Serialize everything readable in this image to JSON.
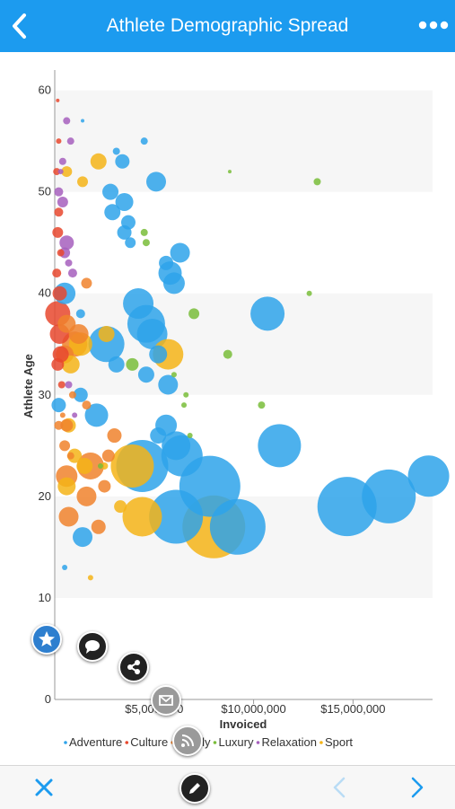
{
  "header": {
    "title": "Athlete Demographic Spread",
    "back_icon": "chevron-left-icon",
    "more_icon": "more-dots-icon"
  },
  "colors": {
    "header_bg": "#1c9bef",
    "Adventure": "#2ea3ea",
    "Culture": "#e8482e",
    "Family": "#f0832d",
    "Luxury": "#79bd3a",
    "Relaxation": "#a65fbd",
    "Sport": "#f5b417"
  },
  "chart_data": {
    "type": "scatter",
    "xlabel": "Invoiced",
    "ylabel": "Athlete Age",
    "xlim": [
      0,
      19000000
    ],
    "ylim": [
      0,
      62
    ],
    "x_ticks": [
      5000000,
      10000000,
      15000000
    ],
    "x_tick_labels": [
      "$5,000,000",
      "$10,000,000",
      "$15,000,000"
    ],
    "y_ticks": [
      0,
      10,
      20,
      30,
      40,
      50,
      60
    ],
    "y_tick_labels": [
      "0",
      "10",
      "20",
      "30",
      "40",
      "50",
      "60"
    ],
    "legend": [
      "Adventure",
      "Culture",
      "Family",
      "Luxury",
      "Relaxation",
      "Sport"
    ],
    "legend_position": "bottom",
    "series": [
      {
        "name": "Adventure",
        "points": [
          [
            500000,
            40,
            12
          ],
          [
            1300000,
            38,
            5
          ],
          [
            3100000,
            54,
            4
          ],
          [
            3400000,
            53,
            8
          ],
          [
            4500000,
            55,
            4
          ],
          [
            5100000,
            51,
            11
          ],
          [
            2800000,
            50,
            9
          ],
          [
            2900000,
            48,
            9
          ],
          [
            3500000,
            49,
            10
          ],
          [
            3700000,
            47,
            8
          ],
          [
            3500000,
            46,
            8
          ],
          [
            3800000,
            45,
            6
          ],
          [
            5600000,
            43,
            8
          ],
          [
            6300000,
            44,
            11
          ],
          [
            5800000,
            42,
            13
          ],
          [
            6000000,
            41,
            12
          ],
          [
            4200000,
            39,
            17
          ],
          [
            4600000,
            37,
            21
          ],
          [
            4900000,
            36,
            17
          ],
          [
            5200000,
            34,
            10
          ],
          [
            4600000,
            32,
            9
          ],
          [
            5700000,
            31,
            11
          ],
          [
            2600000,
            35,
            20
          ],
          [
            3100000,
            33,
            9
          ],
          [
            10700000,
            38,
            19
          ],
          [
            1300000,
            30,
            8
          ],
          [
            2100000,
            28,
            13
          ],
          [
            5600000,
            27,
            12
          ],
          [
            6100000,
            25,
            16
          ],
          [
            5200000,
            26,
            9
          ],
          [
            6400000,
            24,
            23
          ],
          [
            4400000,
            23,
            29
          ],
          [
            7800000,
            21,
            34
          ],
          [
            6100000,
            18,
            30
          ],
          [
            9200000,
            17,
            31
          ],
          [
            11300000,
            25,
            24
          ],
          [
            14700000,
            19,
            33
          ],
          [
            16800000,
            20,
            30
          ],
          [
            18800000,
            22,
            23
          ],
          [
            1400000,
            16,
            11
          ],
          [
            200000,
            29,
            8
          ],
          [
            1400000,
            57,
            2
          ],
          [
            500000,
            13,
            3
          ]
        ]
      },
      {
        "name": "Culture",
        "points": [
          [
            150000,
            38,
            14
          ],
          [
            250000,
            36,
            11
          ],
          [
            300000,
            34,
            9
          ],
          [
            100000,
            42,
            5
          ],
          [
            150000,
            46,
            6
          ],
          [
            200000,
            48,
            5
          ],
          [
            100000,
            52,
            4
          ],
          [
            200000,
            55,
            3
          ],
          [
            350000,
            31,
            4
          ],
          [
            250000,
            40,
            8
          ],
          [
            150000,
            33,
            7
          ],
          [
            300000,
            44,
            4
          ],
          [
            150000,
            59,
            2
          ]
        ]
      },
      {
        "name": "Family",
        "points": [
          [
            600000,
            37,
            10
          ],
          [
            1200000,
            36,
            11
          ],
          [
            1000000,
            35,
            14
          ],
          [
            500000,
            34,
            10
          ],
          [
            1600000,
            41,
            6
          ],
          [
            3000000,
            26,
            8
          ],
          [
            600000,
            27,
            7
          ],
          [
            1800000,
            23,
            15
          ],
          [
            600000,
            22,
            12
          ],
          [
            1600000,
            20,
            11
          ],
          [
            700000,
            18,
            11
          ],
          [
            2500000,
            21,
            7
          ],
          [
            2700000,
            24,
            7
          ],
          [
            2200000,
            17,
            8
          ],
          [
            500000,
            25,
            6
          ],
          [
            1600000,
            29,
            5
          ],
          [
            200000,
            27,
            5
          ],
          [
            900000,
            30,
            4
          ],
          [
            400000,
            28,
            3
          ],
          [
            800000,
            24,
            4
          ]
        ]
      },
      {
        "name": "Luxury",
        "points": [
          [
            13200000,
            51,
            4
          ],
          [
            4500000,
            46,
            4
          ],
          [
            4600000,
            45,
            4
          ],
          [
            7000000,
            38,
            6
          ],
          [
            8700000,
            34,
            5
          ],
          [
            3900000,
            33,
            7
          ],
          [
            6600000,
            30,
            3
          ],
          [
            6500000,
            29,
            3
          ],
          [
            6800000,
            26,
            3
          ],
          [
            10400000,
            29,
            4
          ],
          [
            12800000,
            40,
            3
          ],
          [
            8800000,
            52,
            2
          ],
          [
            2300000,
            23,
            3
          ],
          [
            6000000,
            32,
            3
          ]
        ]
      },
      {
        "name": "Relaxation",
        "points": [
          [
            600000,
            45,
            8
          ],
          [
            800000,
            55,
            4
          ],
          [
            600000,
            57,
            4
          ],
          [
            400000,
            49,
            6
          ],
          [
            500000,
            44,
            6
          ],
          [
            200000,
            50,
            5
          ],
          [
            900000,
            42,
            5
          ],
          [
            700000,
            43,
            4
          ],
          [
            400000,
            53,
            4
          ],
          [
            1000000,
            28,
            3
          ],
          [
            700000,
            31,
            4
          ],
          [
            300000,
            52,
            3
          ]
        ]
      },
      {
        "name": "Sport",
        "points": [
          [
            2200000,
            53,
            9
          ],
          [
            1400000,
            51,
            6
          ],
          [
            600000,
            52,
            6
          ],
          [
            1300000,
            35,
            13
          ],
          [
            800000,
            33,
            10
          ],
          [
            2600000,
            36,
            9
          ],
          [
            3900000,
            23,
            24
          ],
          [
            5700000,
            34,
            17
          ],
          [
            4400000,
            18,
            22
          ],
          [
            8000000,
            17,
            35
          ],
          [
            700000,
            27,
            8
          ],
          [
            1000000,
            24,
            8
          ],
          [
            600000,
            21,
            10
          ],
          [
            1500000,
            23,
            9
          ],
          [
            3300000,
            19,
            7
          ],
          [
            1800000,
            12,
            3
          ],
          [
            2500000,
            23,
            4
          ]
        ]
      }
    ]
  },
  "bottombar": {
    "close_icon": "close-icon",
    "edit_icon": "edit-icon",
    "prev_icon": "chevron-left-icon",
    "next_icon": "chevron-right-icon"
  },
  "fabs": [
    "favorite-icon",
    "comment-icon",
    "share-icon",
    "mail-icon",
    "rss-icon"
  ]
}
